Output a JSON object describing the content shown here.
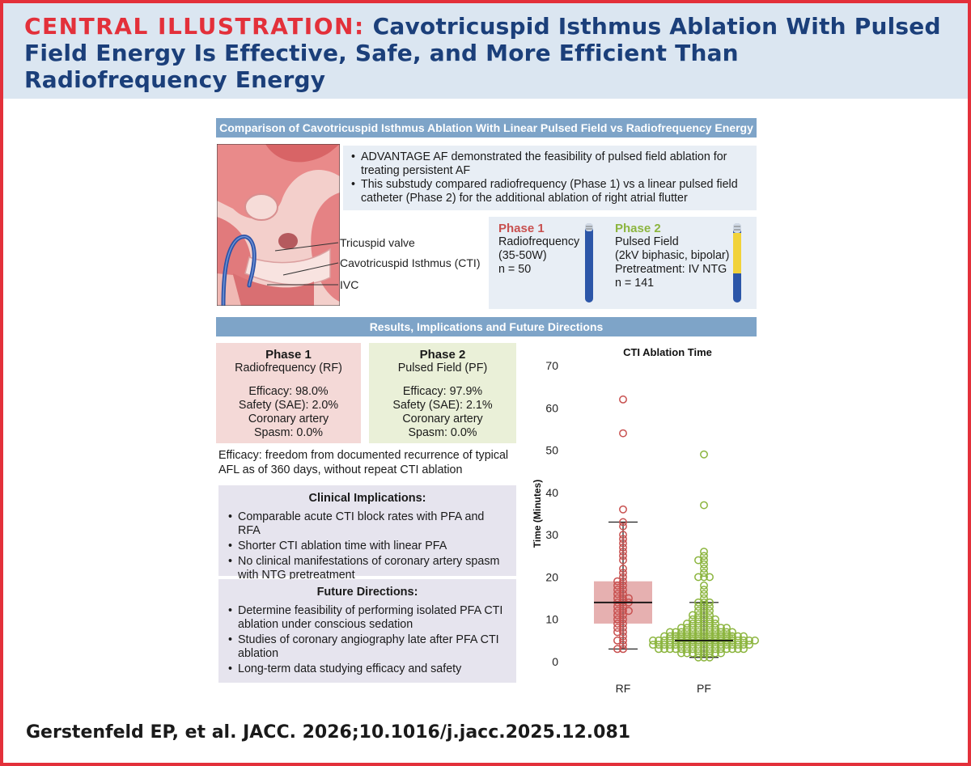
{
  "header": {
    "label": "CENTRAL ILLUSTRATION:",
    "title": "Cavotricuspid Isthmus Ablation With Pulsed Field Energy Is Effective, Safe, and More Efficient Than Radiofrequency Energy"
  },
  "section1": {
    "title": "Comparison of Cavotricuspid Isthmus Ablation With Linear Pulsed Field vs Radiofrequency Energy"
  },
  "anatomy": {
    "labels": [
      "Tricuspid valve",
      "Cavotricuspid Isthmus (CTI)",
      "IVC"
    ]
  },
  "intro": {
    "bullets": [
      "ADVANTAGE AF demonstrated the feasibility of pulsed field ablation for treating persistent AF",
      "This substudy compared radiofrequency (Phase 1) vs a linear pulsed field catheter (Phase 2) for the additional ablation of right atrial flutter"
    ]
  },
  "phases": {
    "phase1": {
      "title": "Phase 1",
      "lines": [
        "Radiofrequency",
        "(35-50W)",
        "n = 50"
      ]
    },
    "phase2": {
      "title": "Phase 2",
      "lines": [
        "Pulsed Field",
        "(2kV biphasic, bipolar)",
        "Pretreatment: IV NTG",
        "n = 141"
      ]
    }
  },
  "section2": {
    "title": "Results, Implications and Future Directions"
  },
  "results": {
    "rf": {
      "title": "Phase 1",
      "subtitle": "Radiofrequency (RF)",
      "lines": [
        "Efficacy: 98.0%",
        "Safety (SAE): 2.0%",
        "Coronary artery",
        "Spasm: 0.0%"
      ]
    },
    "pf": {
      "title": "Phase 2",
      "subtitle": "Pulsed Field (PF)",
      "lines": [
        "Efficacy: 97.9%",
        "Safety (SAE): 2.1%",
        "Coronary artery",
        "Spasm: 0.0%"
      ]
    }
  },
  "efficacy_note": "Efficacy: freedom from documented recurrence of typical AFL as of 360 days, without repeat CTI ablation",
  "clinical": {
    "title": "Clinical Implications:",
    "bullets": [
      "Comparable acute CTI block rates with PFA and RFA",
      "Shorter CTI ablation time with linear PFA",
      "No clinical manifestations of coronary artery spasm with NTG pretreatment"
    ]
  },
  "future": {
    "title": "Future Directions:",
    "bullets": [
      "Determine feasibility of performing isolated PFA CTI ablation under conscious sedation",
      "Studies of coronary angiography late after PFA CTI ablation",
      "Long-term data studying efficacy and safety"
    ]
  },
  "chart_data": {
    "type": "box-scatter",
    "title": "CTI Ablation Time",
    "ylabel": "Time (Minutes)",
    "ylim": [
      0,
      70
    ],
    "yticks": [
      0,
      10,
      20,
      30,
      40,
      50,
      60,
      70
    ],
    "categories": [
      "RF",
      "PF"
    ],
    "colors": {
      "RF": "#c8504f",
      "PF": "#8cb53f"
    },
    "series": [
      {
        "name": "RF",
        "box": {
          "q1": 9,
          "median": 14,
          "q3": 19,
          "whisker_low": 3,
          "whisker_high": 33
        },
        "points": [
          62,
          54,
          36,
          33,
          32,
          30,
          29,
          28,
          27,
          26,
          25,
          24,
          22,
          21,
          20,
          19,
          19,
          18,
          18,
          17,
          17,
          16,
          16,
          15,
          15,
          15,
          14,
          14,
          14,
          13,
          13,
          12,
          12,
          12,
          11,
          11,
          10,
          10,
          9,
          9,
          8,
          8,
          7,
          7,
          6,
          5,
          5,
          4,
          3,
          3
        ]
      },
      {
        "name": "PF",
        "box": {
          "q1": 4,
          "median": 5,
          "q3": 7,
          "whisker_low": 1,
          "whisker_high": 14
        },
        "points": [
          49,
          37,
          26,
          25,
          24,
          24,
          23,
          22,
          21,
          20,
          20,
          20,
          18,
          17,
          16,
          15,
          14,
          14,
          14,
          13,
          13,
          13,
          12,
          12,
          12,
          11,
          11,
          11,
          11,
          10,
          10,
          10,
          10,
          10,
          9,
          9,
          9,
          9,
          9,
          9,
          8,
          8,
          8,
          8,
          8,
          8,
          8,
          8,
          8,
          7,
          7,
          7,
          7,
          7,
          7,
          7,
          7,
          7,
          7,
          7,
          7,
          6,
          6,
          6,
          6,
          6,
          6,
          6,
          6,
          6,
          6,
          6,
          6,
          6,
          6,
          6,
          5,
          5,
          5,
          5,
          5,
          5,
          5,
          5,
          5,
          5,
          5,
          5,
          5,
          5,
          5,
          5,
          5,
          5,
          5,
          4,
          4,
          4,
          4,
          4,
          4,
          4,
          4,
          4,
          4,
          4,
          4,
          4,
          4,
          4,
          4,
          4,
          4,
          3,
          3,
          3,
          3,
          3,
          3,
          3,
          3,
          3,
          3,
          3,
          3,
          3,
          3,
          3,
          3,
          2,
          2,
          2,
          2,
          2,
          2,
          2,
          2,
          1,
          1,
          1
        ]
      }
    ]
  },
  "footer": {
    "citation": "Gerstenfeld EP, et al. JACC. 2026;10.1016/j.jacc.2025.12.081"
  }
}
